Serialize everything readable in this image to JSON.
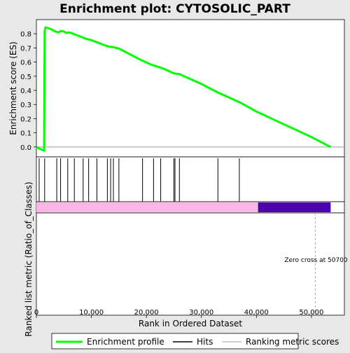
{
  "chart_data": {
    "type": "line",
    "title": "Enrichment plot: CYTOSOLIC_PART",
    "xlabel": "Rank in Ordered Dataset",
    "ylabel_top": "Enrichment score (ES)",
    "ylabel_bottom": "Ranked list metric (Ratio_of_Classes)",
    "xlim": [
      0,
      56000
    ],
    "ylim": [
      -0.07,
      0.9
    ],
    "x_ticks": [
      0,
      10000,
      20000,
      30000,
      40000,
      50000
    ],
    "x_tick_labels": [
      "0",
      "10,000",
      "20,000",
      "30,000",
      "40,000",
      "50,000"
    ],
    "y_ticks": [
      0.0,
      0.1,
      0.2,
      0.3,
      0.4,
      0.5,
      0.6,
      0.7,
      0.8
    ],
    "y_tick_labels": [
      "0.0",
      "0.1",
      "0.2",
      "0.3",
      "0.4",
      "0.5",
      "0.6",
      "0.7",
      "0.8"
    ],
    "series": [
      {
        "name": "Enrichment profile",
        "color": "#00ff00",
        "x": [
          0,
          500,
          1000,
          1400,
          1500,
          1650,
          2500,
          3500,
          4000,
          4500,
          5000,
          5500,
          6000,
          7000,
          8000,
          9000,
          10000,
          11000,
          12000,
          13000,
          14000,
          15000,
          17000,
          19000,
          21000,
          23000,
          25000,
          26000,
          28000,
          30000,
          33000,
          37000,
          40000,
          45000,
          50000,
          53500
        ],
        "y": [
          0.0,
          -0.01,
          -0.02,
          -0.025,
          0.82,
          0.845,
          0.835,
          0.815,
          0.81,
          0.82,
          0.815,
          0.805,
          0.81,
          0.795,
          0.78,
          0.765,
          0.755,
          0.74,
          0.725,
          0.71,
          0.705,
          0.695,
          0.655,
          0.615,
          0.58,
          0.555,
          0.52,
          0.515,
          0.48,
          0.445,
          0.385,
          0.315,
          0.25,
          0.16,
          0.07,
          0.0
        ]
      }
    ],
    "hits": [
      500,
      1500,
      3700,
      4400,
      5700,
      6900,
      8500,
      9500,
      11000,
      12900,
      13500,
      14000,
      15000,
      19300,
      21300,
      22600,
      25000,
      25200,
      26000,
      33000,
      36900
    ],
    "metric_bar": {
      "positive_end": 40300,
      "negative_start": 40300,
      "end": 53500,
      "positive_color": "#ffb6e6",
      "negative_color": "#4b00b4"
    },
    "zero_cross": {
      "label": "Zero cross at 50700",
      "x": 50700
    },
    "legend": {
      "placement": "bottom",
      "items": [
        {
          "label": "Enrichment profile",
          "color": "#00ff00"
        },
        {
          "label": "Hits",
          "color": "#000000"
        },
        {
          "label": "Ranking metric scores",
          "color": "#c0c0c0"
        }
      ]
    }
  }
}
